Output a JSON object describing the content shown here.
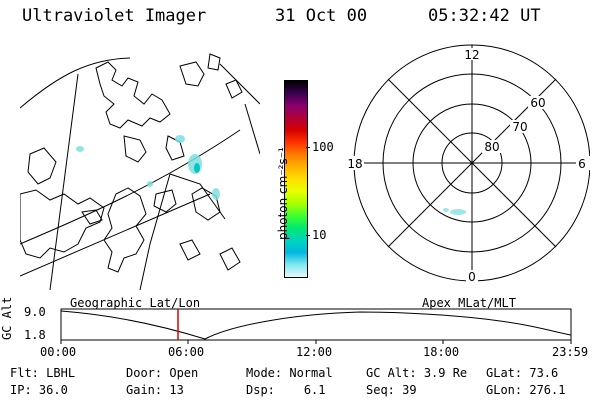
{
  "header": {
    "title": "Ultraviolet Imager",
    "date": "31 Oct 00",
    "time": "05:32:42 UT"
  },
  "colorbar": {
    "unit_label": "photon cm⁻²s⁻¹",
    "ticks": [
      "100",
      "10"
    ],
    "colors": [
      "#000000",
      "#3a0050",
      "#8a0070",
      "#b0003a",
      "#d40000",
      "#ff3000",
      "#ff7a00",
      "#ffb000",
      "#ffdd00",
      "#e8ff00",
      "#a8ff00",
      "#40ff30",
      "#00e870",
      "#00d4c0",
      "#00b8e0",
      "#80e8f0",
      "#e8f8f8"
    ]
  },
  "polar_plot": {
    "mlt_labels": {
      "top": "12",
      "right": "6",
      "bottom": "0",
      "left": "18"
    },
    "lat_labels": [
      "60",
      "70",
      "80"
    ]
  },
  "timeline": {
    "ylabel": "GC Alt",
    "yticks": [
      "9.0",
      "1.8"
    ],
    "left_title": "Geographic Lat/Lon",
    "right_title": "Apex MLat/MLT",
    "xticks": [
      "00:00",
      "06:00",
      "12:00",
      "18:00",
      "23:59"
    ],
    "current_time": "05:32"
  },
  "status": {
    "row1": [
      {
        "label": "Flt:",
        "value": "LBHL"
      },
      {
        "label": "Door:",
        "value": "Open"
      },
      {
        "label": "Mode:",
        "value": "Normal"
      },
      {
        "label": "GC Alt:",
        "value": "3.9 Re"
      },
      {
        "label": "GLat:",
        "value": "73.6"
      }
    ],
    "row2": [
      {
        "label": "IP:",
        "value": "36.0"
      },
      {
        "label": "Gain:",
        "value": "13"
      },
      {
        "label": "Dsp:",
        "value": "6.1"
      },
      {
        "label": "Seq:",
        "value": "39"
      },
      {
        "label": "GLon:",
        "value": "276.1"
      }
    ]
  }
}
